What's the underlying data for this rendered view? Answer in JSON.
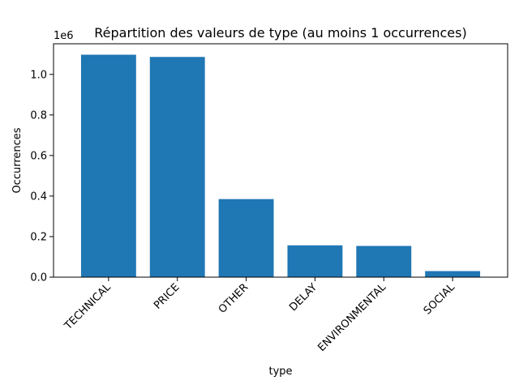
{
  "chart_data": {
    "type": "bar",
    "title": "Répartition des valeurs de type (au moins 1 occurrences)",
    "xlabel": "type",
    "ylabel": "Occurrences",
    "y_scale_label": "1e6",
    "categories": [
      "TECHNICAL",
      "PRICE",
      "OTHER",
      "DELAY",
      "ENVIRONMENTAL",
      "SOCIAL"
    ],
    "values": [
      1097000,
      1086000,
      385000,
      157000,
      154000,
      30000
    ],
    "ylim": [
      0,
      1151000
    ],
    "y_ticks": [
      0,
      200000,
      400000,
      600000,
      800000,
      1000000
    ],
    "y_tick_labels": [
      "0.0",
      "0.2",
      "0.4",
      "0.6",
      "0.8",
      "1.0"
    ],
    "bar_color": "#1f77b4",
    "grid": false,
    "legend": "none"
  }
}
